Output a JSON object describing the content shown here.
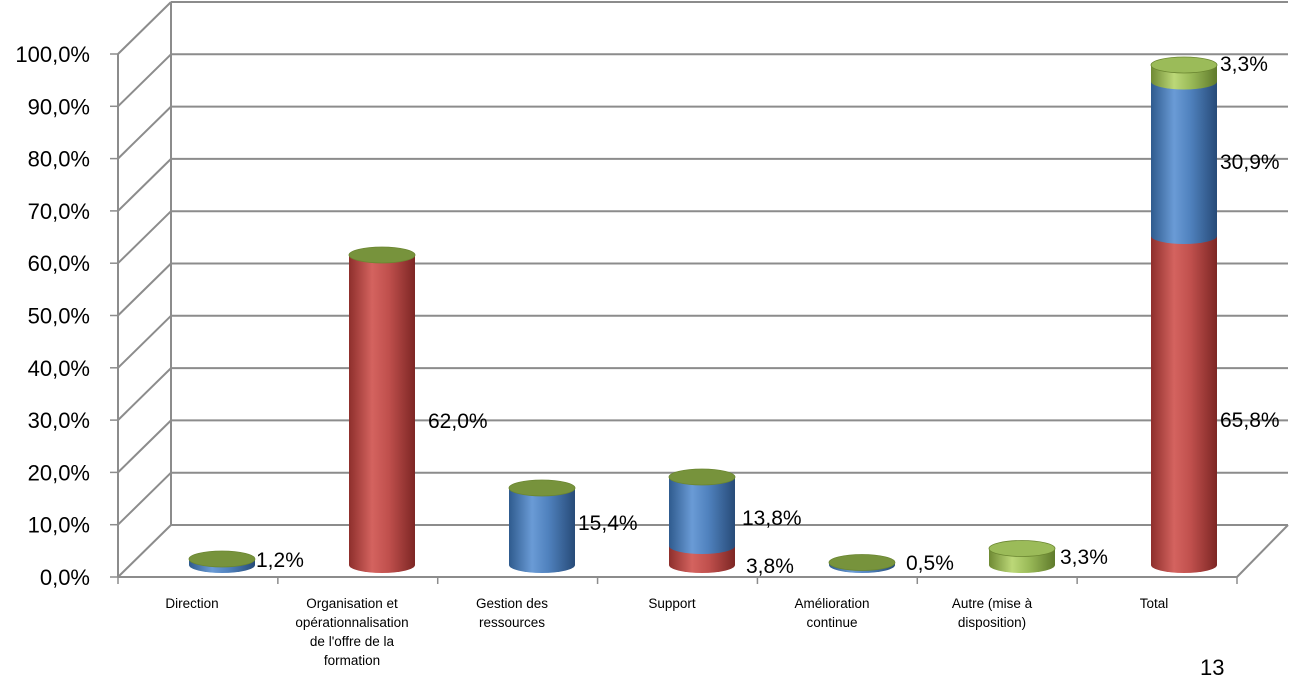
{
  "chart_data": {
    "type": "bar",
    "stacked": true,
    "three_d": true,
    "bar_shape": "cylinder",
    "categories": [
      "Direction",
      "Organisation et opérationnalisation de l'offre de la formation",
      "Gestion des ressources",
      "Support",
      "Amélioration continue",
      "Autre (mise à disposition)",
      "Total"
    ],
    "category_lines": [
      [
        "Direction"
      ],
      [
        "Organisation et",
        "opérationnalisation",
        "de l'offre de la",
        "formation"
      ],
      [
        "Gestion des",
        "ressources"
      ],
      [
        "Support"
      ],
      [
        "Amélioration",
        "continue"
      ],
      [
        "Autre (mise à",
        "disposition)"
      ],
      [
        "Total"
      ]
    ],
    "series": [
      {
        "color": "#c0504d",
        "values": [
          0,
          62.0,
          0,
          3.8,
          0,
          0,
          65.8
        ]
      },
      {
        "color": "#4f81bd",
        "values": [
          1.2,
          0,
          15.4,
          13.8,
          0.5,
          0,
          30.9
        ]
      },
      {
        "color": "#9bbb59",
        "values": [
          0,
          0,
          0,
          0,
          0,
          3.3,
          3.3
        ]
      }
    ],
    "data_labels": [
      {
        "category_index": 0,
        "text": "1,2%"
      },
      {
        "category_index": 1,
        "text": "62,0%"
      },
      {
        "category_index": 2,
        "text": "15,4%"
      },
      {
        "category_index": 3,
        "text": "13,8%"
      },
      {
        "category_index": 3,
        "text": "3,8%"
      },
      {
        "category_index": 4,
        "text": "0,5%"
      },
      {
        "category_index": 5,
        "text": "3,3%"
      },
      {
        "category_index": 6,
        "text": "3,3%"
      },
      {
        "category_index": 6,
        "text": "30,9%"
      },
      {
        "category_index": 6,
        "text": "65,8%"
      }
    ],
    "yticks": [
      "0,0%",
      "10,0%",
      "20,0%",
      "30,0%",
      "40,0%",
      "50,0%",
      "60,0%",
      "70,0%",
      "80,0%",
      "90,0%",
      "100,0%"
    ],
    "ylim": [
      0,
      100
    ],
    "grid": true,
    "legend": "none",
    "title": "",
    "xlabel": "",
    "ylabel": ""
  },
  "page_number": "13"
}
